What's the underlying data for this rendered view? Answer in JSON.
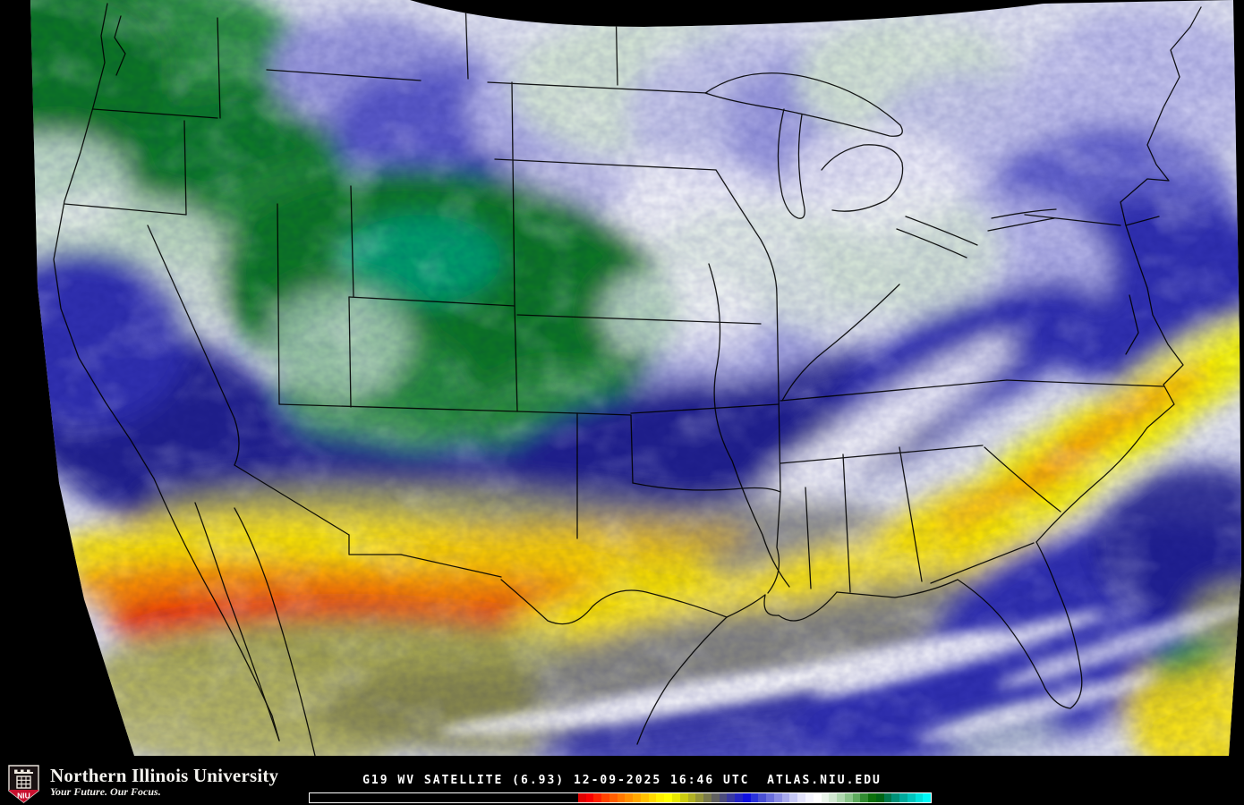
{
  "map": {
    "name": "g19-water-vapor-satellite-map",
    "description_visible": "false-color water vapor imagery over the continental United States"
  },
  "caption": {
    "text": "G19 WV SATELLITE (6.93) 12-09-2025 16:46 UTC  ATLAS.NIU.EDU",
    "satellite": "G19",
    "product": "WV SATELLITE",
    "channel": "(6.93)",
    "date": "12-09-2025",
    "time": "16:46 UTC",
    "site": "ATLAS.NIU.EDU"
  },
  "footer": {
    "logo_acronym": "NIU",
    "university": "Northern Illinois University",
    "tagline": "Your Future. Our Focus.",
    "brand_red": "#c8102e"
  },
  "palette": {
    "background": "#000000",
    "base_pale": "#e3e6f2",
    "deep_green": "#0e7a24",
    "green": "#2f9440",
    "teal_green": "#00a878",
    "pale_green": "#d9ead7",
    "white": "#ffffff",
    "lavender": "#c2c2ee",
    "light_purple": "#9c9ce0",
    "blue_purple": "#5b5bcb",
    "deep_blue": "#3030b2",
    "navy": "#22228e",
    "gray": "#8a8a80",
    "olive": "#a8a84e",
    "khaki": "#b8b860",
    "dark_olive": "#80804a",
    "yellow": "#ffe800",
    "bright_yellow": "#ffff00",
    "amber": "#ffc400",
    "orange": "#ff8c00",
    "orange_red": "#ff5000",
    "red": "#f01000",
    "bright_red": "#ff1e00",
    "border_line": "#000000"
  },
  "colorbar": {
    "black_fraction_pct": 43.2,
    "swatches": [
      "#e00000",
      "#f80000",
      "#ff2200",
      "#ff4400",
      "#ff5e00",
      "#ff7800",
      "#ff9000",
      "#ffa800",
      "#ffc000",
      "#ffd800",
      "#fff000",
      "#ffff00",
      "#e8e800",
      "#cccc10",
      "#b0b024",
      "#949438",
      "#78784c",
      "#606060",
      "#4c4c7c",
      "#3838a0",
      "#2424c4",
      "#1010e0",
      "#2a32dc",
      "#4a50d4",
      "#6a6edc",
      "#8a8ce4",
      "#a8aaec",
      "#c6c8f4",
      "#e2e2fa",
      "#f4f4fe",
      "#ffffff",
      "#eaf4ea",
      "#d2e8d2",
      "#b0d8b0",
      "#8ac48a",
      "#5eaa5e",
      "#328c32",
      "#0c700c",
      "#006414",
      "#00784c",
      "#009078",
      "#00aa9c",
      "#00c4bc",
      "#00e0dc",
      "#00f8f8"
    ]
  }
}
